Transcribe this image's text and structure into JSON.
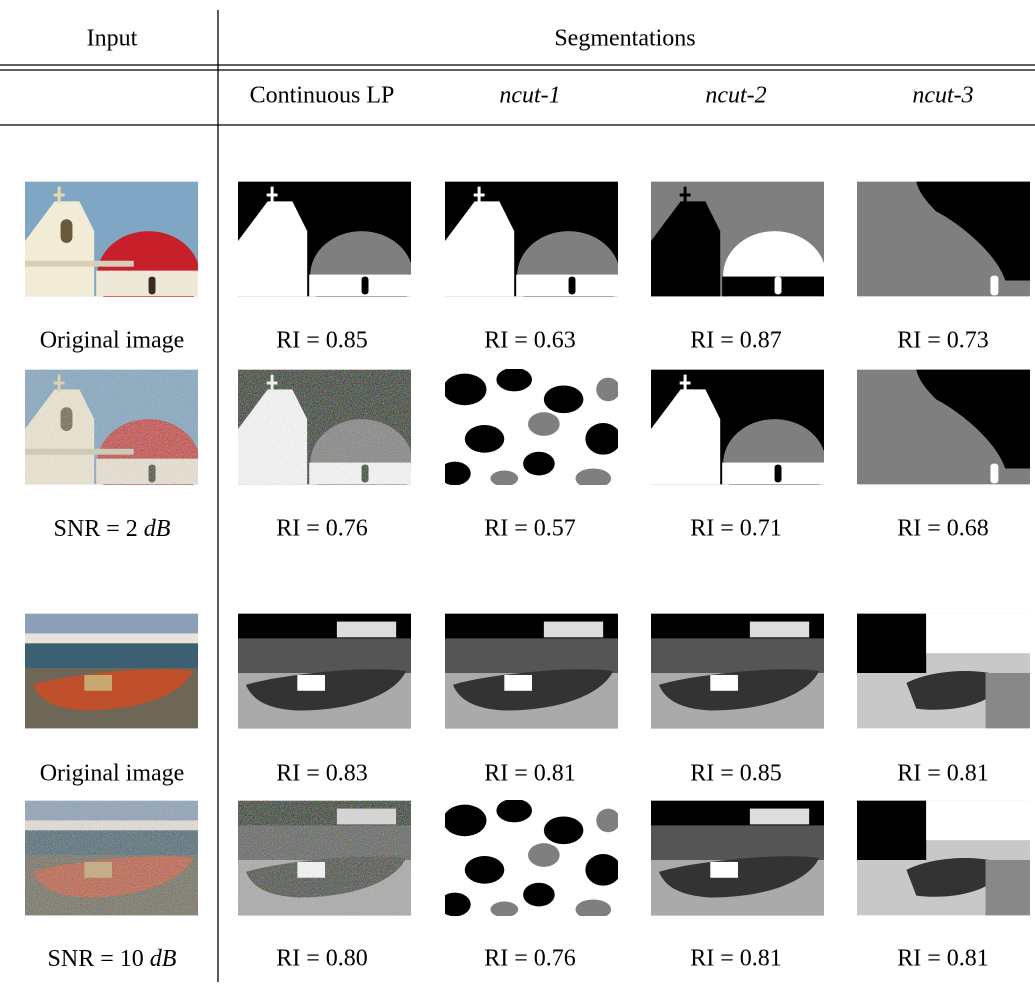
{
  "header": {
    "input": "Input",
    "segmentations": "Segmentations"
  },
  "columns": [
    "Continuous LP",
    "ncut-1",
    "ncut-2",
    "ncut-3"
  ],
  "rows": [
    {
      "input_label": "Original image",
      "scores": [
        "RI = 0.85",
        "RI = 0.63",
        "RI = 0.87",
        "RI = 0.73"
      ]
    },
    {
      "input_label": {
        "text": "SNR = 2",
        "unit": "dB"
      },
      "scores": [
        "RI = 0.76",
        "RI = 0.57",
        "RI = 0.71",
        "RI = 0.68"
      ]
    },
    {
      "input_label": "Original image",
      "scores": [
        "RI = 0.83",
        "RI = 0.81",
        "RI = 0.85",
        "RI = 0.81"
      ]
    },
    {
      "input_label": {
        "text": "SNR = 10",
        "unit": "dB"
      },
      "scores": [
        "RI = 0.80",
        "RI = 0.76",
        "RI = 0.81",
        "RI = 0.81"
      ]
    }
  ]
}
